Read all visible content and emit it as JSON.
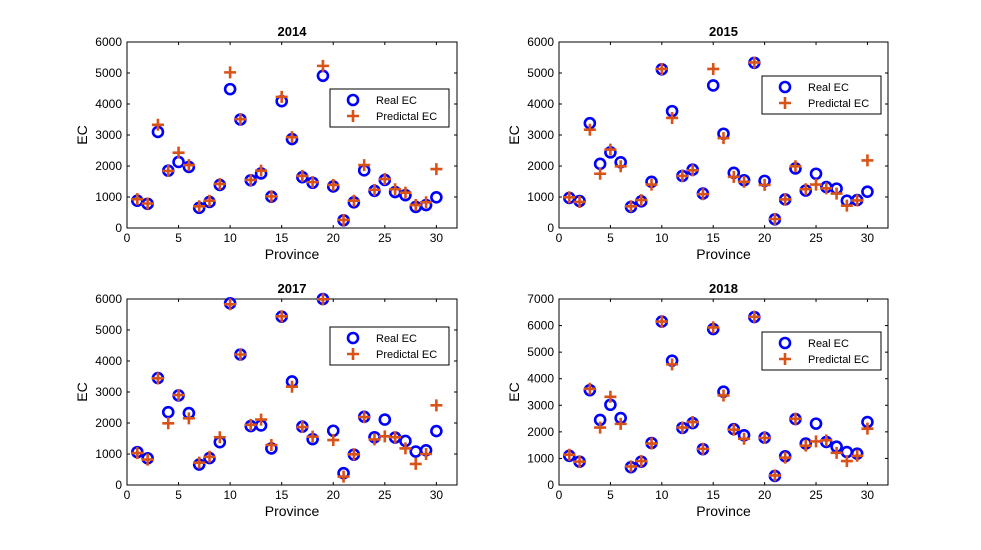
{
  "chart_data": [
    {
      "type": "scatter",
      "title": "2014",
      "xlabel": "Province",
      "ylabel": "EC",
      "xlim": [
        0,
        32
      ],
      "ylim": [
        0,
        6000
      ],
      "xticks": [
        "0",
        "5",
        "10",
        "15",
        "20",
        "25",
        "30"
      ],
      "yticks": [
        "0",
        "1000",
        "2000",
        "3000",
        "4000",
        "5000",
        "6000"
      ],
      "legend_position": "top-right",
      "series": [
        {
          "name": "Real EC",
          "marker": "circle",
          "color": "#0000FF",
          "x": [
            1,
            2,
            3,
            4,
            5,
            6,
            7,
            8,
            9,
            10,
            11,
            12,
            13,
            14,
            15,
            16,
            17,
            18,
            19,
            20,
            21,
            22,
            23,
            24,
            25,
            26,
            27,
            28,
            29,
            30
          ],
          "y": [
            880,
            780,
            3100,
            1850,
            2130,
            1970,
            650,
            840,
            1390,
            4480,
            3500,
            1540,
            1760,
            1010,
            4090,
            2870,
            1640,
            1460,
            4910,
            1340,
            250,
            830,
            1860,
            1200,
            1550,
            1160,
            1060,
            680,
            740,
            990
          ]
        },
        {
          "name": "Predictal EC",
          "marker": "plus",
          "color": "#D95319",
          "x": [
            1,
            2,
            3,
            4,
            5,
            6,
            7,
            8,
            9,
            10,
            11,
            12,
            13,
            14,
            15,
            16,
            17,
            18,
            19,
            20,
            21,
            22,
            23,
            24,
            25,
            26,
            27,
            28,
            29,
            30
          ],
          "y": [
            930,
            790,
            3330,
            1840,
            2430,
            2030,
            700,
            880,
            1420,
            5020,
            3510,
            1550,
            1850,
            1020,
            4230,
            2930,
            1680,
            1480,
            5230,
            1390,
            260,
            880,
            2030,
            1230,
            1580,
            1250,
            1140,
            740,
            830,
            1900
          ]
        }
      ]
    },
    {
      "type": "scatter",
      "title": "2015",
      "xlabel": "Province",
      "ylabel": "EC",
      "xlim": [
        0,
        32
      ],
      "ylim": [
        0,
        6000
      ],
      "xticks": [
        "0",
        "5",
        "10",
        "15",
        "20",
        "25",
        "30"
      ],
      "yticks": [
        "0",
        "1000",
        "2000",
        "3000",
        "4000",
        "5000",
        "6000"
      ],
      "legend_position": "top-right",
      "series": [
        {
          "name": "Real EC",
          "marker": "circle",
          "color": "#0000FF",
          "x": [
            1,
            2,
            3,
            4,
            5,
            6,
            7,
            8,
            9,
            10,
            11,
            12,
            13,
            14,
            15,
            16,
            17,
            18,
            19,
            20,
            21,
            22,
            23,
            24,
            25,
            26,
            27,
            28,
            29,
            30
          ],
          "y": [
            970,
            870,
            3380,
            2070,
            2440,
            2120,
            680,
            860,
            1490,
            5120,
            3770,
            1680,
            1880,
            1110,
            4600,
            3040,
            1780,
            1540,
            5330,
            1520,
            280,
            920,
            1920,
            1210,
            1750,
            1320,
            1270,
            880,
            900,
            1170
          ]
        },
        {
          "name": "Predictal EC",
          "marker": "plus",
          "color": "#D95319",
          "x": [
            1,
            2,
            3,
            4,
            5,
            6,
            7,
            8,
            9,
            10,
            11,
            12,
            13,
            14,
            15,
            16,
            17,
            18,
            19,
            20,
            21,
            22,
            23,
            24,
            25,
            26,
            27,
            28,
            29,
            30
          ],
          "y": [
            990,
            840,
            3170,
            1750,
            2530,
            1990,
            700,
            900,
            1400,
            5130,
            3550,
            1680,
            1860,
            1090,
            5130,
            2900,
            1650,
            1490,
            5340,
            1390,
            290,
            920,
            1990,
            1250,
            1400,
            1280,
            1110,
            720,
            890,
            2180
          ]
        }
      ]
    },
    {
      "type": "scatter",
      "title": "2017",
      "xlabel": "Province",
      "ylabel": "EC",
      "xlim": [
        0,
        32
      ],
      "ylim": [
        0,
        6000
      ],
      "xticks": [
        "0",
        "5",
        "10",
        "15",
        "20",
        "25",
        "30"
      ],
      "yticks": [
        "0",
        "1000",
        "2000",
        "3000",
        "4000",
        "5000",
        "6000"
      ],
      "legend_position": "top-right",
      "series": [
        {
          "name": "Real EC",
          "marker": "circle",
          "color": "#0000FF",
          "x": [
            1,
            2,
            3,
            4,
            5,
            6,
            7,
            8,
            9,
            10,
            11,
            12,
            13,
            14,
            15,
            16,
            17,
            18,
            19,
            20,
            21,
            22,
            23,
            24,
            25,
            26,
            27,
            28,
            29,
            30
          ],
          "y": [
            1060,
            860,
            3450,
            2350,
            2890,
            2320,
            660,
            870,
            1380,
            5860,
            4210,
            1900,
            1920,
            1180,
            5430,
            3340,
            1880,
            1480,
            6000,
            1750,
            380,
            980,
            2200,
            1540,
            2110,
            1530,
            1420,
            1080,
            1120,
            1740
          ]
        },
        {
          "name": "Predictal EC",
          "marker": "plus",
          "color": "#D95319",
          "x": [
            1,
            2,
            3,
            4,
            5,
            6,
            7,
            8,
            9,
            10,
            11,
            12,
            13,
            14,
            15,
            16,
            17,
            18,
            19,
            20,
            21,
            22,
            23,
            24,
            25,
            26,
            27,
            28,
            29,
            30
          ],
          "y": [
            1030,
            820,
            3440,
            1990,
            2900,
            2150,
            720,
            910,
            1540,
            5830,
            4210,
            1940,
            2110,
            1290,
            5440,
            3170,
            1870,
            1560,
            5990,
            1450,
            270,
            990,
            2190,
            1470,
            1570,
            1540,
            1180,
            680,
            1000,
            2570
          ]
        }
      ]
    },
    {
      "type": "scatter",
      "title": "2018",
      "xlabel": "Province",
      "ylabel": "EC",
      "xlim": [
        0,
        32
      ],
      "ylim": [
        0,
        7000
      ],
      "xticks": [
        "0",
        "5",
        "10",
        "15",
        "20",
        "25",
        "30"
      ],
      "yticks": [
        "0",
        "1000",
        "2000",
        "3000",
        "4000",
        "5000",
        "6000",
        "7000"
      ],
      "legend_position": "top-right",
      "series": [
        {
          "name": "Real EC",
          "marker": "circle",
          "color": "#0000FF",
          "x": [
            1,
            2,
            3,
            4,
            5,
            6,
            7,
            8,
            9,
            10,
            11,
            12,
            13,
            14,
            15,
            16,
            17,
            18,
            19,
            20,
            21,
            22,
            23,
            24,
            25,
            26,
            27,
            28,
            29,
            30
          ],
          "y": [
            1100,
            880,
            3570,
            2450,
            3020,
            2520,
            670,
            880,
            1580,
            6150,
            4680,
            2150,
            2330,
            1350,
            5870,
            3510,
            2100,
            1870,
            6320,
            1780,
            340,
            1080,
            2480,
            1560,
            2310,
            1620,
            1440,
            1240,
            1180,
            2370
          ]
        },
        {
          "name": "Predictal EC",
          "marker": "plus",
          "color": "#D95319",
          "x": [
            1,
            2,
            3,
            4,
            5,
            6,
            7,
            8,
            9,
            10,
            11,
            12,
            13,
            14,
            15,
            16,
            17,
            18,
            19,
            20,
            21,
            22,
            23,
            24,
            25,
            26,
            27,
            28,
            29,
            30
          ],
          "y": [
            1140,
            880,
            3620,
            2160,
            3320,
            2300,
            700,
            900,
            1560,
            6150,
            4540,
            2160,
            2370,
            1360,
            5930,
            3370,
            2080,
            1740,
            6330,
            1770,
            360,
            1030,
            2490,
            1480,
            1640,
            1680,
            1210,
            900,
            1100,
            2120
          ]
        }
      ]
    }
  ]
}
